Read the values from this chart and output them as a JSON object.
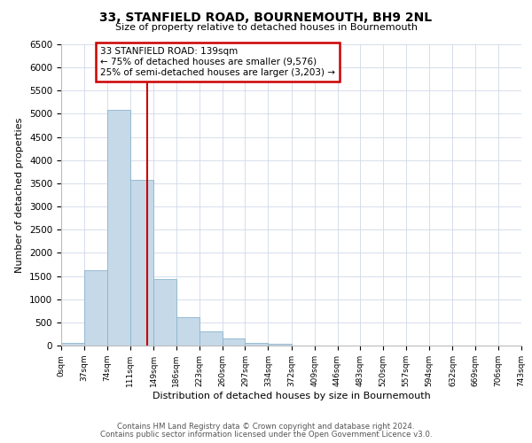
{
  "title": "33, STANFIELD ROAD, BOURNEMOUTH, BH9 2NL",
  "subtitle": "Size of property relative to detached houses in Bournemouth",
  "xlabel": "Distribution of detached houses by size in Bournemouth",
  "ylabel": "Number of detached properties",
  "bin_edges": [
    0,
    37,
    74,
    111,
    149,
    186,
    223,
    260,
    297,
    334,
    372,
    409,
    446,
    483,
    520,
    557,
    594,
    632,
    669,
    706,
    743
  ],
  "bar_heights": [
    60,
    1630,
    5080,
    3580,
    1430,
    615,
    300,
    145,
    60,
    30,
    0,
    0,
    0,
    0,
    0,
    0,
    0,
    0,
    0,
    0
  ],
  "bar_color": "#c6d9e8",
  "bar_edge_color": "#8ab4cc",
  "property_line_x": 139,
  "ylim": [
    0,
    6500
  ],
  "yticks": [
    0,
    500,
    1000,
    1500,
    2000,
    2500,
    3000,
    3500,
    4000,
    4500,
    5000,
    5500,
    6000,
    6500
  ],
  "annotation_title": "33 STANFIELD ROAD: 139sqm",
  "annotation_line1": "← 75% of detached houses are smaller (9,576)",
  "annotation_line2": "25% of semi-detached houses are larger (3,203) →",
  "annotation_box_color": "#ffffff",
  "annotation_box_edge_color": "#cc0000",
  "footer1": "Contains HM Land Registry data © Crown copyright and database right 2024.",
  "footer2": "Contains public sector information licensed under the Open Government Licence v3.0.",
  "tick_labels": [
    "0sqm",
    "37sqm",
    "74sqm",
    "111sqm",
    "149sqm",
    "186sqm",
    "223sqm",
    "260sqm",
    "297sqm",
    "334sqm",
    "372sqm",
    "409sqm",
    "446sqm",
    "483sqm",
    "520sqm",
    "557sqm",
    "594sqm",
    "632sqm",
    "669sqm",
    "706sqm",
    "743sqm"
  ],
  "red_line_color": "#cc0000",
  "grid_color": "#d0d8e8",
  "background_color": "#ffffff"
}
